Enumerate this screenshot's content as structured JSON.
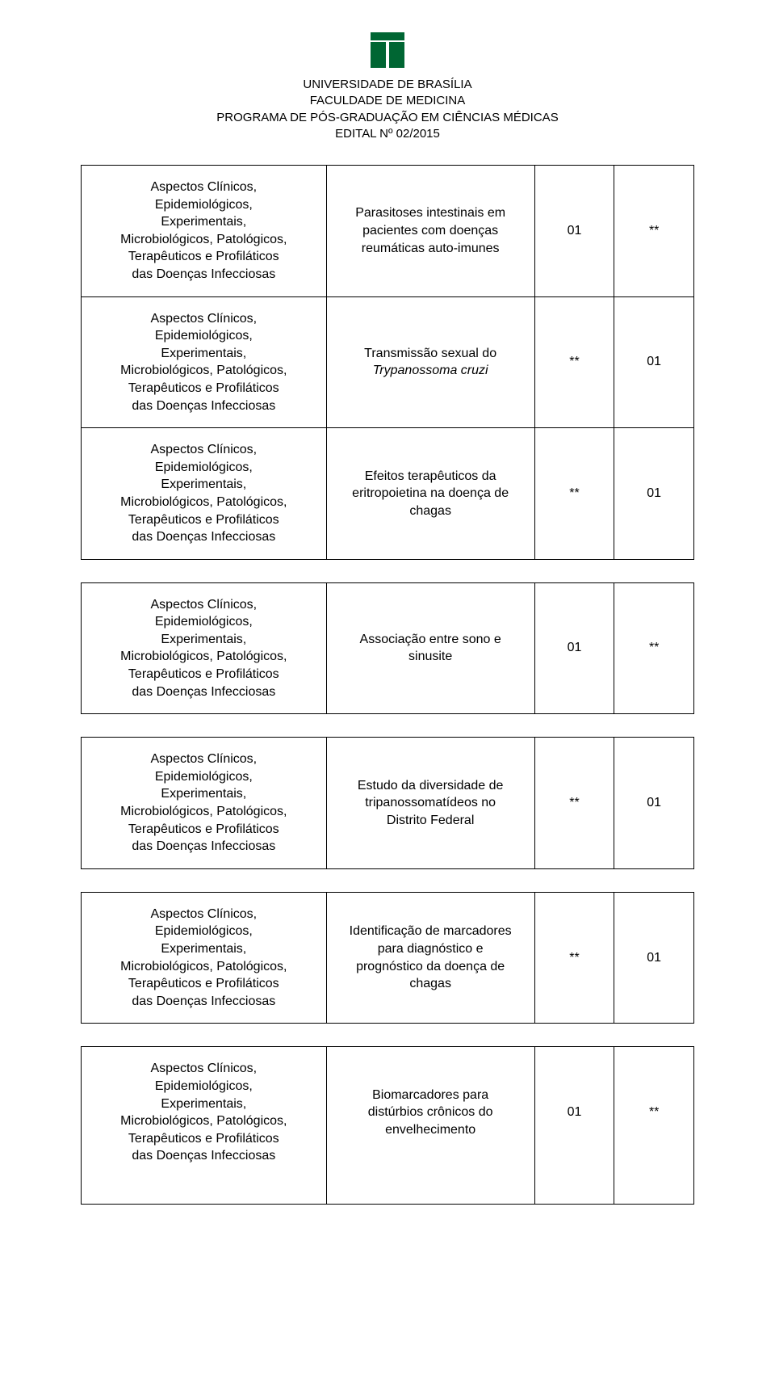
{
  "header": {
    "university": "UNIVERSIDADE DE BRASÍLIA",
    "faculty": "FACULDADE DE MEDICINA",
    "program": "PROGRAMA DE PÓS-GRADUAÇÃO EM CIÊNCIAS MÉDICAS",
    "edital": "EDITAL Nº 02/2015"
  },
  "research_line": {
    "l1": "Aspectos Clínicos,",
    "l2": "Epidemiológicos,",
    "l3": "Experimentais,",
    "l4": "Microbiológicos, Patológicos,",
    "l5": "Terapêuticos e Profiláticos",
    "l6": "das Doenças Infecciosas"
  },
  "rows": [
    {
      "topic_lines": [
        "Parasitoses intestinais em",
        "pacientes com doenças",
        "reumáticas auto-imunes"
      ],
      "c1": "01",
      "c2": "**"
    },
    {
      "topic_lines": [
        "Transmissão sexual do"
      ],
      "topic_italic": "Trypanossoma cruzi",
      "c1": "**",
      "c2": "01"
    },
    {
      "topic_lines": [
        "Efeitos terapêuticos da",
        "eritropoietina na doença de",
        "chagas"
      ],
      "c1": "**",
      "c2": "01"
    },
    {
      "topic_lines": [
        "Associação entre sono e",
        "sinusite"
      ],
      "c1": "01",
      "c2": "**"
    },
    {
      "topic_lines": [
        "Estudo da diversidade de",
        "tripanossomatídeos no",
        "Distrito Federal"
      ],
      "c1": "**",
      "c2": "01"
    },
    {
      "topic_lines": [
        "Identificação de marcadores",
        "para diagnóstico e",
        "prognóstico da doença de",
        "chagas"
      ],
      "c1": "**",
      "c2": "01"
    },
    {
      "topic_lines": [
        "Biomarcadores para",
        "distúrbios crônicos do",
        "envelhecimento"
      ],
      "c1": "01",
      "c2": "**"
    }
  ],
  "colors": {
    "text": "#000000",
    "border": "#000000",
    "logo_green": "#006633",
    "background": "#ffffff"
  }
}
